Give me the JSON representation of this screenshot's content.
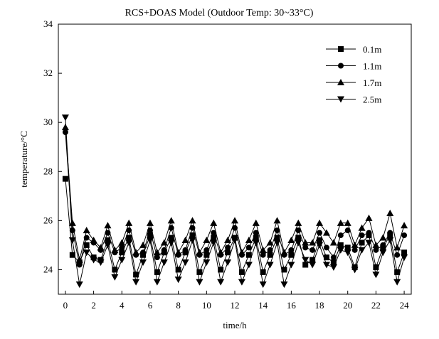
{
  "chart_data": {
    "type": "line",
    "title": "RCS+DOAS Model (Outdoor Temp: 30~33°C)",
    "xlabel": "time/h",
    "ylabel": "temperature/°C",
    "xlim": [
      -0.5,
      24.5
    ],
    "ylim": [
      23,
      34
    ],
    "xticks": [
      0,
      2,
      4,
      6,
      8,
      10,
      12,
      14,
      16,
      18,
      20,
      22,
      24
    ],
    "yticks": [
      24,
      26,
      28,
      30,
      32,
      34
    ],
    "legend_position": "top-right",
    "series": [
      {
        "name": "0.1m",
        "marker": "square",
        "x": [
          0,
          0.5,
          1,
          1.5,
          2,
          2.5,
          3,
          3.5,
          4,
          4.5,
          5,
          5.5,
          6,
          6.5,
          7,
          7.5,
          8,
          8.5,
          9,
          9.5,
          10,
          10.5,
          11,
          11.5,
          12,
          12.5,
          13,
          13.5,
          14,
          14.5,
          15,
          15.5,
          16,
          16.5,
          17,
          17.5,
          18,
          18.5,
          19,
          19.5,
          20,
          20.5,
          21,
          21.5,
          22,
          22.5,
          23,
          23.5,
          24
        ],
        "values": [
          27.7,
          24.6,
          24.3,
          25.0,
          24.5,
          24.4,
          25.2,
          24.0,
          24.7,
          25.3,
          23.8,
          24.6,
          25.4,
          23.9,
          24.7,
          25.3,
          24.0,
          24.7,
          25.4,
          23.9,
          24.6,
          25.3,
          24.0,
          24.7,
          25.3,
          23.9,
          24.6,
          25.3,
          23.9,
          24.6,
          25.3,
          24.0,
          24.6,
          25.3,
          24.2,
          24.4,
          25.2,
          24.5,
          24.3,
          25.0,
          24.9,
          24.1,
          25.1,
          25.4,
          24.1,
          24.9,
          25.4,
          23.9,
          24.7
        ]
      },
      {
        "name": "1.1m",
        "marker": "circle",
        "x": [
          0,
          0.5,
          1,
          1.5,
          2,
          2.5,
          3,
          3.5,
          4,
          4.5,
          5,
          5.5,
          6,
          6.5,
          7,
          7.5,
          8,
          8.5,
          9,
          9.5,
          10,
          10.5,
          11,
          11.5,
          12,
          12.5,
          13,
          13.5,
          14,
          14.5,
          15,
          15.5,
          16,
          16.5,
          17,
          17.5,
          18,
          18.5,
          19,
          19.5,
          20,
          20.5,
          21,
          21.5,
          22,
          22.5,
          23,
          23.5,
          24
        ],
        "values": [
          29.6,
          25.6,
          24.2,
          25.3,
          25.1,
          24.8,
          25.5,
          24.7,
          24.9,
          25.6,
          24.6,
          24.7,
          25.6,
          24.5,
          24.8,
          25.7,
          24.6,
          24.8,
          25.7,
          24.6,
          24.8,
          25.5,
          24.6,
          24.9,
          25.7,
          24.6,
          24.9,
          25.5,
          24.6,
          24.8,
          25.6,
          24.6,
          24.8,
          25.6,
          24.9,
          24.8,
          25.5,
          24.9,
          24.5,
          25.4,
          25.6,
          24.8,
          25.4,
          25.5,
          24.8,
          25.0,
          25.5,
          24.6,
          25.4
        ]
      },
      {
        "name": "1.7m",
        "marker": "triangle-up",
        "x": [
          0,
          0.5,
          1,
          1.5,
          2,
          2.5,
          3,
          3.5,
          4,
          4.5,
          5,
          5.5,
          6,
          6.5,
          7,
          7.5,
          8,
          8.5,
          9,
          9.5,
          10,
          10.5,
          11,
          11.5,
          12,
          12.5,
          13,
          13.5,
          14,
          14.5,
          15,
          15.5,
          16,
          16.5,
          17,
          17.5,
          18,
          18.5,
          19,
          19.5,
          20,
          20.5,
          21,
          21.5,
          22,
          22.5,
          23,
          23.5,
          24
        ],
        "values": [
          29.8,
          25.9,
          24.4,
          25.6,
          25.2,
          24.9,
          25.8,
          24.8,
          25.1,
          25.9,
          24.7,
          25.0,
          25.9,
          24.7,
          25.1,
          26.0,
          24.7,
          25.2,
          26.0,
          24.7,
          25.2,
          25.9,
          24.7,
          25.2,
          26.0,
          24.7,
          25.2,
          25.9,
          24.8,
          25.1,
          26.0,
          24.7,
          25.2,
          25.9,
          25.1,
          25.1,
          25.9,
          25.5,
          25.1,
          25.9,
          25.9,
          25.0,
          25.7,
          26.1,
          25.0,
          25.3,
          26.3,
          24.9,
          25.8
        ]
      },
      {
        "name": "2.5m",
        "marker": "triangle-down",
        "x": [
          0,
          0.5,
          1,
          1.5,
          2,
          2.5,
          3,
          3.5,
          4,
          4.5,
          5,
          5.5,
          6,
          6.5,
          7,
          7.5,
          8,
          8.5,
          9,
          9.5,
          10,
          10.5,
          11,
          11.5,
          12,
          12.5,
          13,
          13.5,
          14,
          14.5,
          15,
          15.5,
          16,
          16.5,
          17,
          17.5,
          18,
          18.5,
          19,
          19.5,
          20,
          20.5,
          21,
          21.5,
          22,
          22.5,
          23,
          23.5,
          24
        ],
        "values": [
          30.2,
          25.2,
          23.4,
          24.7,
          24.4,
          24.3,
          25.0,
          23.7,
          24.4,
          25.1,
          23.5,
          24.3,
          25.2,
          23.5,
          24.3,
          25.1,
          23.6,
          24.3,
          25.2,
          23.5,
          24.3,
          25.1,
          23.5,
          24.3,
          25.2,
          23.5,
          24.2,
          25.1,
          23.4,
          24.2,
          25.1,
          23.4,
          24.2,
          25.1,
          24.4,
          24.2,
          25.0,
          24.2,
          24.1,
          24.8,
          24.7,
          24.0,
          24.8,
          25.1,
          23.8,
          24.7,
          25.2,
          23.5,
          24.5
        ]
      }
    ]
  }
}
